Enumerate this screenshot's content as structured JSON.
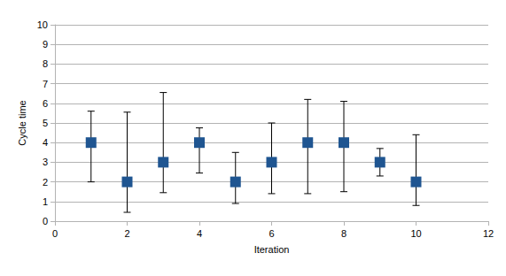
{
  "chart_data": {
    "type": "scatter",
    "x_label": "Iteration",
    "y_label": "Cycle time",
    "x": [
      1,
      2,
      3,
      4,
      5,
      6,
      7,
      8,
      9,
      10
    ],
    "values": [
      4,
      2,
      3,
      4,
      2,
      3,
      4,
      4,
      3,
      2
    ],
    "error_lower": [
      2.0,
      0.45,
      1.45,
      2.45,
      0.9,
      1.4,
      1.4,
      1.5,
      2.3,
      0.8
    ],
    "error_upper": [
      5.6,
      5.55,
      6.55,
      4.75,
      3.5,
      5.0,
      6.2,
      6.1,
      3.7,
      4.4
    ],
    "color": "#1f5591",
    "marker": "square",
    "xlim": [
      0,
      12
    ],
    "xticks": [
      0,
      2,
      4,
      6,
      8,
      10,
      12
    ],
    "ylim": [
      0,
      10
    ],
    "yticks": [
      0,
      1,
      2,
      3,
      4,
      5,
      6,
      7,
      8,
      9,
      10
    ],
    "grid": true
  }
}
